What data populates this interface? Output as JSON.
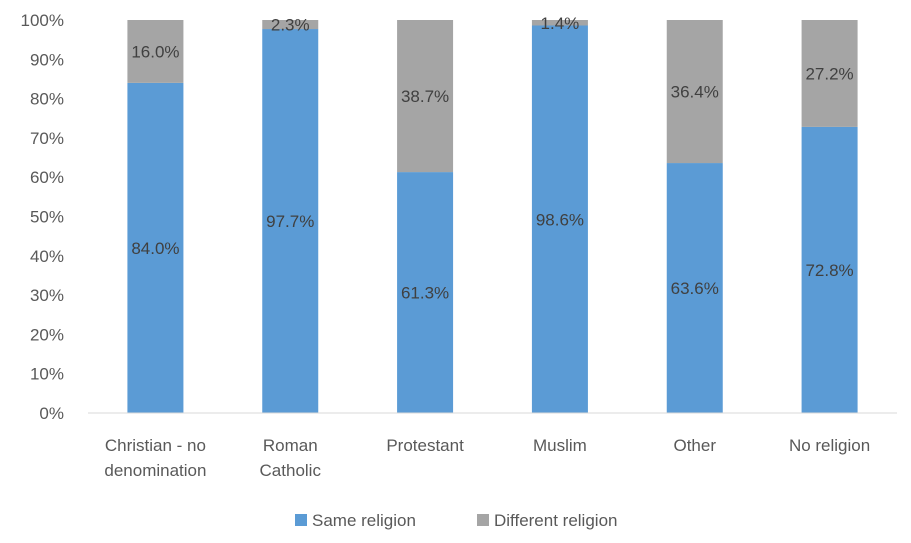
{
  "chart_data": {
    "type": "bar",
    "stacked": true,
    "percent_stacked": true,
    "categories": [
      [
        "Christian - no",
        "denomination"
      ],
      [
        "Roman",
        "Catholic"
      ],
      [
        "Protestant"
      ],
      [
        "Muslim"
      ],
      [
        "Other"
      ],
      [
        "No religion"
      ]
    ],
    "series": [
      {
        "name": "Same religion",
        "color": "#5B9BD5",
        "values": [
          84.0,
          97.7,
          61.3,
          98.6,
          63.6,
          72.8
        ],
        "labels": [
          "84.0%",
          "97.7%",
          "61.3%",
          "98.6%",
          "63.6%",
          "72.8%"
        ]
      },
      {
        "name": "Different religion",
        "color": "#A5A5A5",
        "values": [
          16.0,
          2.3,
          38.7,
          1.4,
          36.4,
          27.2
        ],
        "labels": [
          "16.0%",
          "2.3%",
          "38.7%",
          "1.4%",
          "36.4%",
          "27.2%"
        ]
      }
    ],
    "y_ticks": [
      "0%",
      "10%",
      "20%",
      "30%",
      "40%",
      "50%",
      "60%",
      "70%",
      "80%",
      "90%",
      "100%"
    ],
    "ylim": [
      0,
      100
    ],
    "grid": false,
    "legend_position": "bottom",
    "title": "",
    "xlabel": "",
    "ylabel": ""
  }
}
